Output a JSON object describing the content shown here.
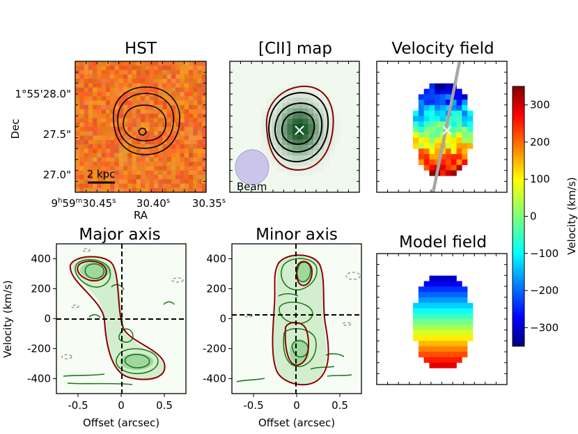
{
  "figure": {
    "panels": {
      "hst": {
        "title": "HST",
        "ylabel": "Dec",
        "xlabel": "RA",
        "yticks": [
          "1°55'28.0\"",
          "27.5\"",
          "27.0\""
        ],
        "xtick_prefix": "9",
        "xtick_h": "h",
        "xtick_mid": "59",
        "xtick_m": "m",
        "xtick_sec": "30.45",
        "xtick_s": "s",
        "xticks_rest": [
          {
            "v": "30.40",
            "s": "s"
          },
          {
            "v": "30.35",
            "s": "s"
          }
        ],
        "scalebar_label": "2 kpc"
      },
      "cii": {
        "title": "[CII] map",
        "beam_label": "Beam"
      },
      "velocity": {
        "title": "Velocity field"
      },
      "model": {
        "title": "Model field"
      },
      "major": {
        "title": "Major axis"
      },
      "minor": {
        "title": "Minor axis"
      }
    },
    "colorbar": {
      "label": "Velocity (km/s)",
      "range": [
        -350,
        350
      ]
    }
  },
  "chart_data": [
    {
      "type": "heatmap",
      "title": "HST",
      "xlabel": "RA",
      "ylabel": "Dec",
      "xticks": [
        "9h59m30.45s",
        "30.40s",
        "30.35s"
      ],
      "yticks": [
        "1°55'28.0\"",
        "27.5\"",
        "27.0\""
      ],
      "annotation": "2 kpc",
      "contours": "black"
    },
    {
      "type": "heatmap",
      "title": "[CII] map",
      "annotation": "Beam",
      "colormap": "greens",
      "contours": [
        "black",
        "darkred"
      ],
      "center_marker": "x"
    },
    {
      "type": "heatmap",
      "title": "Velocity field",
      "colormap": "jet",
      "vmin": -350,
      "vmax": 350,
      "center_marker": "x",
      "major_axis_line": "gray"
    },
    {
      "type": "heatmap",
      "title": "Model field",
      "colormap": "jet",
      "vmin": -350,
      "vmax": 350
    },
    {
      "type": "heatmap",
      "title": "Major axis",
      "xlabel": "Offset (arcsec)",
      "ylabel": "Velocity (km/s)",
      "xlim": [
        -0.75,
        0.75
      ],
      "ylim": [
        -500,
        500
      ],
      "xticks": [
        -0.5,
        0,
        0.5
      ],
      "xtick_labels": [
        "-0.5",
        "0",
        "0.5"
      ],
      "yticks": [
        400,
        200,
        0,
        -200,
        -400
      ],
      "ytick_labels": [
        "400",
        "200",
        "0",
        "-200",
        "-400"
      ]
    },
    {
      "type": "heatmap",
      "title": "Minor axis",
      "xlabel": "Offset (arcsec)",
      "xlim": [
        -0.75,
        0.75
      ],
      "ylim": [
        -500,
        500
      ],
      "xticks": [
        -0.5,
        0,
        0.5
      ],
      "xtick_labels": [
        "-0.5",
        "0",
        "0.5"
      ],
      "yticks": [
        400,
        200,
        0,
        -200,
        -400
      ],
      "ytick_labels": [
        "400",
        "200",
        "0",
        "-200",
        "-400"
      ]
    },
    {
      "type": "colorbar",
      "label": "Velocity (km/s)",
      "ticks": [
        300,
        200,
        100,
        0,
        -100,
        -200,
        -300
      ],
      "tick_labels": [
        "300",
        "200",
        "100",
        "0",
        "−100",
        "−200",
        "−300"
      ],
      "range": [
        -350,
        350
      ]
    }
  ]
}
